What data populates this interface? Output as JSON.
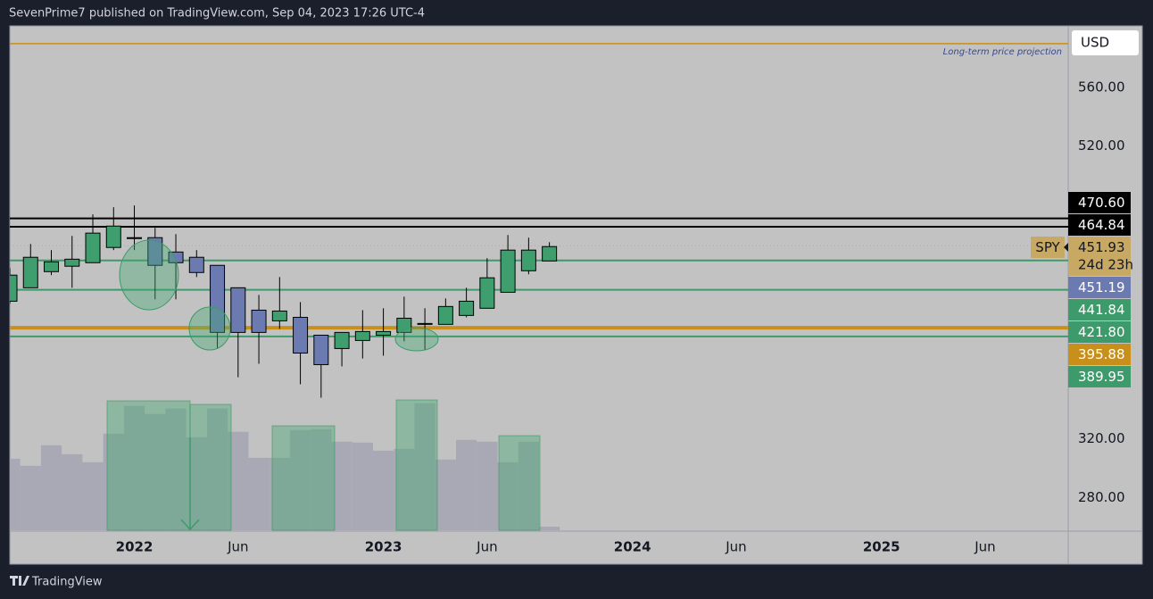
{
  "header": {
    "text": "SevenPrime7 published on TradingView.com, Sep 04, 2023 17:26 UTC-4"
  },
  "footer": {
    "brand": "TradingView"
  },
  "currency_button": "USD",
  "chart_data": {
    "type": "candlestick",
    "x": [
      "2021-07",
      "2021-08",
      "2021-09",
      "2021-10",
      "2021-11",
      "2021-12",
      "2022-01",
      "2022-02",
      "2022-03",
      "2022-04",
      "2022-05",
      "2022-06",
      "2022-07",
      "2022-08",
      "2022-09",
      "2022-10",
      "2022-11",
      "2022-12",
      "2023-01",
      "2023-02",
      "2023-03",
      "2023-04",
      "2023-05",
      "2023-06",
      "2023-07",
      "2023-08",
      "2023-09"
    ],
    "open": [
      414.0,
      423.2,
      434.2,
      437.9,
      440.3,
      450.7,
      457.4,
      457.4,
      447.6,
      444.0,
      438.5,
      423.2,
      407.9,
      400.6,
      403.0,
      390.8,
      381.7,
      387.2,
      390.8,
      392.7,
      398.2,
      398.2,
      404.3,
      409.2,
      420.1,
      434.8,
      441.5
    ],
    "high": [
      436.6,
      453.1,
      448.9,
      458.6,
      473.3,
      478.2,
      479.4,
      464.1,
      459.8,
      448.9,
      438.5,
      423.2,
      418.3,
      430.5,
      413.4,
      390.8,
      392.7,
      407.9,
      409.2,
      417.1,
      409.2,
      415.9,
      423.2,
      443.4,
      459.2,
      457.4,
      454.3
    ],
    "low": [
      412.2,
      423.2,
      431.8,
      423.2,
      440.3,
      448.9,
      448.9,
      415.3,
      415.3,
      430.5,
      381.7,
      362.1,
      371.3,
      395.1,
      357.3,
      348.1,
      369.5,
      374.9,
      376.8,
      386.6,
      380.5,
      398.2,
      403.0,
      409.2,
      420.1,
      432.4,
      441.5
    ],
    "close": [
      431.8,
      444.0,
      440.9,
      442.7,
      460.5,
      465.3,
      456.8,
      438.5,
      440.3,
      433.6,
      392.7,
      392.7,
      392.7,
      407.3,
      378.6,
      370.7,
      392.7,
      393.3,
      393.3,
      402.4,
      398.8,
      410.4,
      414.0,
      430.0,
      448.9,
      448.9,
      451.3
    ],
    "volume": [
      960,
      864,
      1140,
      1020,
      912,
      1296,
      1668,
      1560,
      1632,
      1248,
      1632,
      1320,
      972,
      972,
      1344,
      1356,
      1188,
      1176,
      1068,
      1092,
      1704,
      948,
      1212,
      1188,
      912,
      1188,
      48
    ],
    "up_color": "#3f9e6e",
    "down_color": "#6b7bb2",
    "volume_color": "#a8a9b4",
    "ylim": [
      257,
      602
    ],
    "yticks": [
      {
        "value": 280,
        "label": "280.00"
      },
      {
        "value": 320,
        "label": "320.00"
      },
      {
        "value": 520,
        "label": "520.00"
      },
      {
        "value": 560,
        "label": "560.00"
      }
    ],
    "xlim": [
      "2021-07",
      "2025-10"
    ],
    "xticks": [
      {
        "value": "2022-01",
        "label": "2022"
      },
      {
        "value": "2022-06",
        "label": "Jun"
      },
      {
        "value": "2023-01",
        "label": "2023"
      },
      {
        "value": "2023-06",
        "label": "Jun"
      },
      {
        "value": "2024-01",
        "label": "2024"
      },
      {
        "value": "2024-06",
        "label": "Jun"
      },
      {
        "value": "2025-01",
        "label": "2025"
      },
      {
        "value": "2025-06",
        "label": "Jun"
      }
    ],
    "volume_lim": [
      0,
      2000
    ],
    "projection": {
      "value": 589.9,
      "label": "Long-term price projection",
      "color": "#c8901a"
    },
    "levels": [
      {
        "value": 470.6,
        "label": "470.60",
        "color": "#000000",
        "line": "solid"
      },
      {
        "value": 464.84,
        "label": "464.84",
        "color": "#000000",
        "line": "solid"
      },
      {
        "value": 451.93,
        "label": "451.93",
        "color": "#c8a963",
        "line": "dotted",
        "symbol": "SPY",
        "countdown": "24d 23h"
      },
      {
        "value": 451.19,
        "label": "451.19",
        "color": "#6b7bb2"
      },
      {
        "value": 441.84,
        "label": "441.84",
        "color": "#3d9a6a",
        "line": "solid"
      },
      {
        "value": 421.8,
        "label": "421.80",
        "color": "#3d9a6a",
        "line": "solid"
      },
      {
        "value": 395.88,
        "label": "395.88",
        "color": "#c8901a",
        "line": "thick"
      },
      {
        "value": 389.95,
        "label": "389.95",
        "color": "#3d9a6a",
        "line": "solid"
      }
    ]
  }
}
